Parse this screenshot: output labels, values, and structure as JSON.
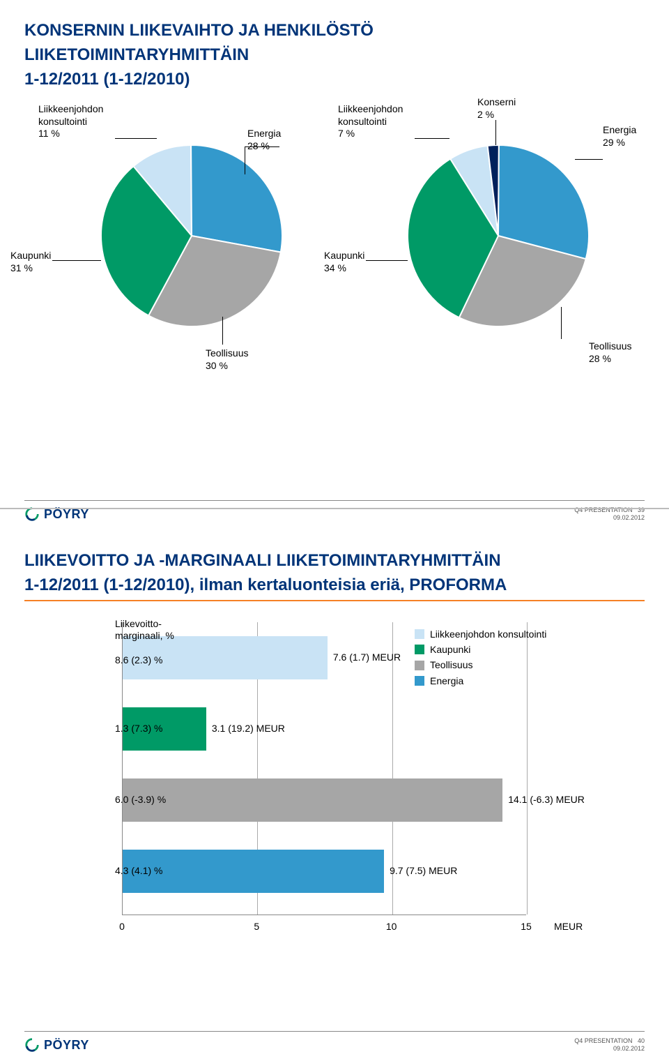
{
  "slide1": {
    "title_line1": "KONSERNIN LIIKEVAIHTO JA HENKILÖSTÖ",
    "title_line2": "LIIKETOIMINTARYHMITTÄIN",
    "title_line3": "1-12/2011 (1-12/2010)",
    "pies": {
      "left": {
        "slices": [
          {
            "label": "Liikkeenjohdon\nkonsultointi\n11 %",
            "value": 11,
            "color": "#c9e3f5"
          },
          {
            "label": "Energia\n28 %",
            "value": 28,
            "color": "#3399cc"
          },
          {
            "label": "Teollisuus\n30 %",
            "value": 30,
            "color": "#a6a6a6"
          },
          {
            "label": "Kaupunki\n31 %",
            "value": 31,
            "color": "#009a66"
          }
        ],
        "border_color": "#ffffff",
        "radius": 130
      },
      "right": {
        "slices": [
          {
            "label": "Liikkeenjohdon\nkonsultointi\n7 %",
            "value": 7,
            "color": "#c9e3f5"
          },
          {
            "label": "Konserni\n2 %",
            "value": 2,
            "color": "#00205b"
          },
          {
            "label": "Energia\n29 %",
            "value": 29,
            "color": "#3399cc"
          },
          {
            "label": "Teollisuus\n28 %",
            "value": 28,
            "color": "#a6a6a6"
          },
          {
            "label": "Kaupunki\n34 %",
            "value": 34,
            "color": "#009a66"
          }
        ],
        "border_color": "#ffffff",
        "radius": 130
      }
    },
    "footer_meta1": "Q4 PRESENTATION",
    "footer_meta2": "09.02.2012",
    "footer_page": "39",
    "logo_text": "PÖYRY"
  },
  "slide2": {
    "title_line1": "LIIKEVOITTO JA -MARGINAALI LIIKETOIMINTARYHMITTÄIN",
    "title_line2": "1-12/2011 (1-12/2010), ilman kertaluonteisia eriä, PROFORMA",
    "bars": {
      "x_max": 15,
      "x_ticks": [
        0,
        5,
        10,
        15
      ],
      "x_axis_label": "MEUR",
      "grid_color": "#aaaaaa",
      "series": [
        {
          "left_label": "Liikevoitto-\nmarginaali, %\n\n8.6 (2.3) %",
          "value": 7.6,
          "value_label": "7.6 (1.7) MEUR",
          "color": "#c9e3f5",
          "legend": "Liikkeenjohdon konsultointi"
        },
        {
          "left_label": "1.3 (7.3) %",
          "value": 3.1,
          "value_label": "3.1 (19.2) MEUR",
          "color": "#009a66",
          "legend": "Kaupunki"
        },
        {
          "left_label": "6.0 (-3.9) %",
          "value": 14.1,
          "value_label": "14.1 (-6.3) MEUR",
          "color": "#a6a6a6",
          "legend": "Teollisuus"
        },
        {
          "left_label": "4.3 (4.1) %",
          "value": 9.7,
          "value_label": "9.7 (7.5) MEUR",
          "color": "#3399cc",
          "legend": "Energia"
        }
      ]
    },
    "footer_meta1": "Q4 PRESENTATION",
    "footer_meta2": "09.02.2012",
    "footer_page": "40",
    "logo_text": "PÖYRY"
  },
  "colors": {
    "title": "#003478",
    "accent": "#f58025"
  }
}
